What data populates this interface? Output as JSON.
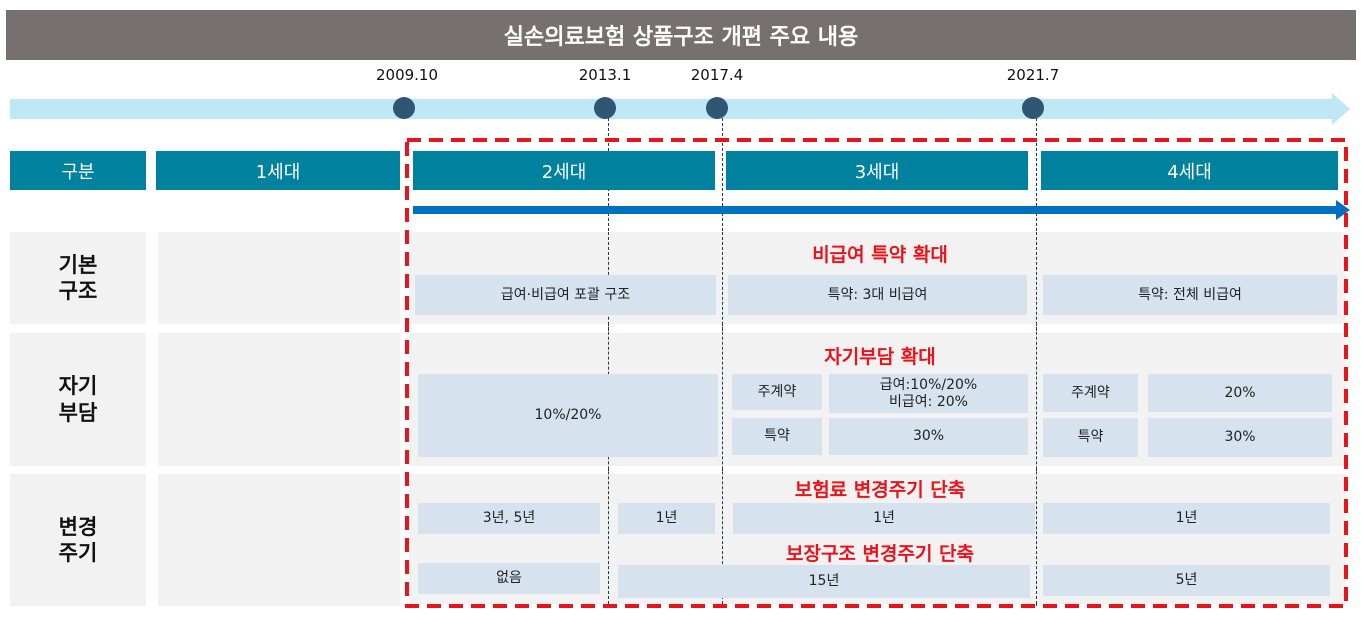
{
  "title": "실손의료보험 상품구조 개편 주요 내용",
  "timeline": {
    "dates": [
      "2009.10",
      "2013.1",
      "2017.4",
      "2021.7"
    ]
  },
  "header": {
    "category": "구분",
    "gen1": "1세대",
    "gen2": "2세대",
    "gen3": "3세대",
    "gen4": "4세대"
  },
  "rows": {
    "basic": {
      "label": "기본\n구조",
      "headline": "비급여 특약 확대",
      "gen2": "급여·비급여 포괄 구조",
      "gen3": "특약: 3대 비급여",
      "gen4": "특약: 전체 비급여"
    },
    "copay": {
      "label": "자기\n부담",
      "headline": "자기부담 확대",
      "gen2": "10%/20%",
      "gen3_main_label": "주계약",
      "gen3_main_value": "급여:10%/20%\n비급여: 20%",
      "gen3_rider_label": "특약",
      "gen3_rider_value": "30%",
      "gen4_main_label": "주계약",
      "gen4_main_value": "20%",
      "gen4_rider_label": "특약",
      "gen4_rider_value": "30%"
    },
    "cycle": {
      "label": "변경\n주기",
      "premium_headline": "보험료 변경주기 단축",
      "premium": [
        "3년, 5년",
        "1년",
        "1년",
        "1년"
      ],
      "coverage_headline": "보장구조 변경주기 단축",
      "coverage": [
        "없음",
        "15년",
        "5년"
      ]
    }
  },
  "colors": {
    "header": "#00829e",
    "highlight": "#e8141b",
    "cell": "#d6e2ed",
    "timeline": "#bfe8f5",
    "arrow": "#0070c0"
  }
}
